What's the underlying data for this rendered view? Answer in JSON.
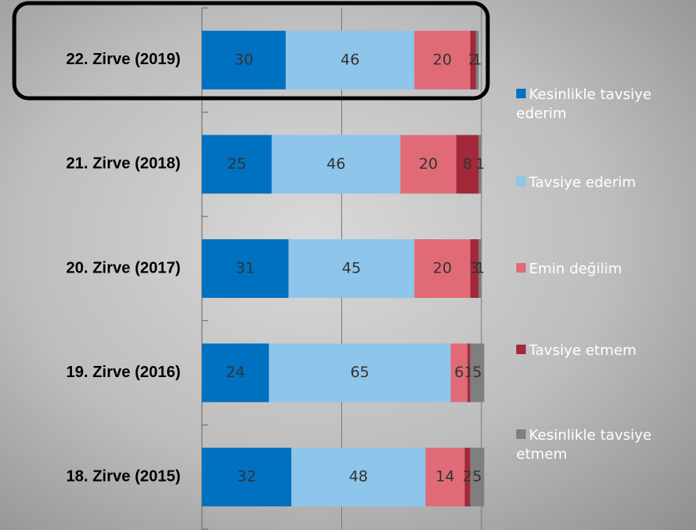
{
  "chart_data": {
    "type": "stacked-bar-horizontal",
    "categories": [
      "22. Zirve (2019)",
      "21. Zirve (2018)",
      "20. Zirve (2017)",
      "19. Zirve (2016)",
      "18. Zirve (2015)"
    ],
    "series": [
      {
        "name": "Kesinlikle tavsiye ederim",
        "color": "#0070c0",
        "values": [
          30,
          25,
          31,
          24,
          32
        ]
      },
      {
        "name": "Tavsiye ederim",
        "color": "#8ec5ea",
        "values": [
          46,
          46,
          45,
          65,
          48
        ]
      },
      {
        "name": "Emin değilim",
        "color": "#e06b77",
        "values": [
          20,
          20,
          20,
          6,
          14
        ]
      },
      {
        "name": "Tavsiye etmem",
        "color": "#a3293a",
        "values": [
          2,
          8,
          3,
          1,
          2
        ]
      },
      {
        "name": "Kesinlikle tavsiye etmem",
        "color": "#7f7f7f",
        "values": [
          1,
          1,
          1,
          5,
          5
        ]
      }
    ],
    "xlim": [
      0,
      100
    ],
    "xticks": [
      0,
      50,
      100
    ],
    "grid": true
  }
}
